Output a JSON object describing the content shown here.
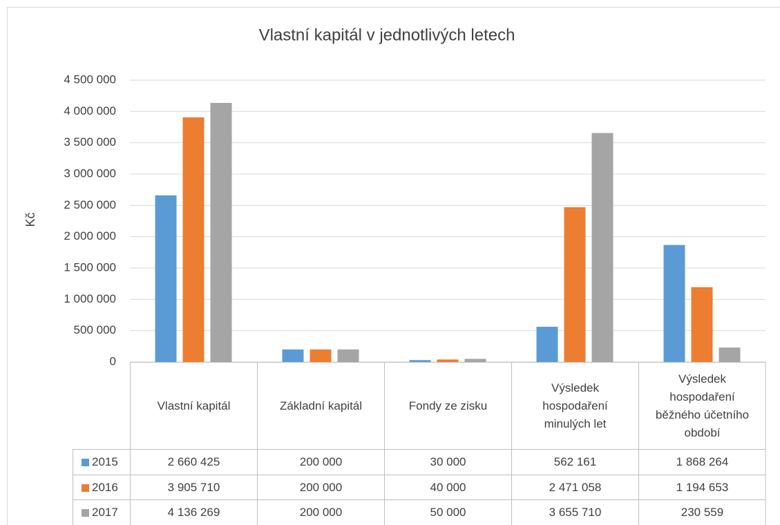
{
  "chart_data": {
    "type": "bar",
    "title": "Vlastní kapitál v jednotlivých letech",
    "y_label": "Kč",
    "categories": [
      "Vlastní kapitál",
      "Základní kapitál",
      "Fondy ze zisku",
      "Výsledek hospodaření minulých let",
      "Výsledek hospodaření běžného účetního období"
    ],
    "series": [
      {
        "name": "2015",
        "color": "#5b9bd5",
        "values": [
          2660425,
          200000,
          30000,
          562161,
          1868264
        ],
        "value_labels": [
          "2 660 425",
          "200 000",
          "30 000",
          "562 161",
          "1 868 264"
        ]
      },
      {
        "name": "2016",
        "color": "#ed7d31",
        "values": [
          3905710,
          200000,
          40000,
          2471058,
          1194653
        ],
        "value_labels": [
          "3 905 710",
          "200 000",
          "40 000",
          "2 471 058",
          "1 194 653"
        ]
      },
      {
        "name": "2017",
        "color": "#a5a5a5",
        "values": [
          4136269,
          200000,
          50000,
          3655710,
          230559
        ],
        "value_labels": [
          "4 136 269",
          "200 000",
          "50 000",
          "3 655 710",
          "230 559"
        ]
      }
    ],
    "ylim": [
      0,
      4500000
    ],
    "yticks": [
      0,
      {
        "value": 500000,
        "label": "500 000"
      },
      {
        "value": 1000000,
        "label": "1 000 000"
      },
      {
        "value": 1500000,
        "label": "1 500 000"
      },
      {
        "value": 2000000,
        "label": "2 000 000"
      },
      {
        "value": 2500000,
        "label": "2 500 000"
      },
      {
        "value": 3000000,
        "label": "3 000 000"
      },
      {
        "value": 3500000,
        "label": "3 500 000"
      },
      {
        "value": 4000000,
        "label": "4 000 000"
      },
      {
        "value": 4500000,
        "label": "4 500 000"
      }
    ],
    "grid": true
  }
}
